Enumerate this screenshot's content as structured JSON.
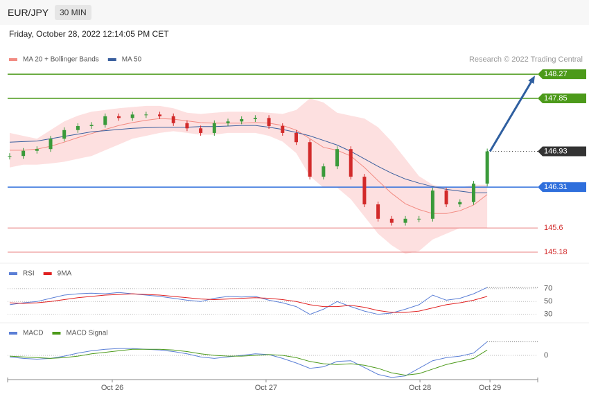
{
  "symbol": "EUR/JPY",
  "timeframe": "30 MIN",
  "datetime": "Friday, October 28, 2022 12:14:05 PM CET",
  "credit": "Research © 2022 Trading Central",
  "chart_data": [
    {
      "type": "candlestick",
      "color_up": "#3a9a3a",
      "color_down": "#d22a2a",
      "values": [
        146.85,
        146.94,
        146.97,
        147.15,
        147.3,
        147.37,
        147.39,
        147.54,
        147.51,
        147.57,
        147.57,
        147.54,
        147.42,
        147.33,
        147.25,
        147.42,
        147.45,
        147.49,
        147.51,
        147.37,
        147.25,
        147.09,
        146.49,
        146.67,
        146.97,
        146.49,
        146.01,
        145.76,
        145.69,
        145.76,
        145.76,
        146.25,
        146.01,
        146.05,
        146.37,
        146.93
      ],
      "series": [
        {
          "name": "MA 20 + Bollinger Bands",
          "color": "#f28b82",
          "band_color": "#fde0e0",
          "values": [
            146.95,
            146.95,
            146.97,
            147.02,
            147.09,
            147.17,
            147.24,
            147.31,
            147.38,
            147.43,
            147.47,
            147.5,
            147.49,
            147.46,
            147.43,
            147.42,
            147.42,
            147.42,
            147.43,
            147.42,
            147.38,
            147.3,
            147.15,
            147.0,
            146.95,
            146.85,
            146.65,
            146.42,
            146.2,
            146.02,
            145.92,
            145.85,
            145.85,
            145.9,
            146.0,
            146.18
          ],
          "upper": [
            147.25,
            147.2,
            147.15,
            147.3,
            147.45,
            147.55,
            147.62,
            147.65,
            147.68,
            147.7,
            147.72,
            147.72,
            147.68,
            147.6,
            147.58,
            147.6,
            147.62,
            147.62,
            147.62,
            147.6,
            147.58,
            147.65,
            147.85,
            147.78,
            147.6,
            147.55,
            147.5,
            147.35,
            147.1,
            146.8,
            146.5,
            146.35,
            146.3,
            146.3,
            146.35,
            146.35
          ],
          "lower": [
            146.65,
            146.7,
            146.7,
            146.72,
            146.75,
            146.8,
            146.85,
            146.95,
            147.05,
            147.15,
            147.2,
            147.25,
            147.28,
            147.25,
            147.22,
            147.22,
            147.25,
            147.25,
            147.25,
            147.2,
            147.1,
            146.9,
            146.5,
            146.3,
            146.3,
            146.1,
            145.8,
            145.5,
            145.3,
            145.15,
            145.2,
            145.4,
            145.5,
            145.6,
            145.6,
            145.6
          ]
        },
        {
          "name": "MA 50",
          "color": "#3a5f9e",
          "values": [
            147.09,
            147.1,
            147.11,
            147.15,
            147.19,
            147.23,
            147.27,
            147.29,
            147.31,
            147.33,
            147.34,
            147.35,
            147.35,
            147.35,
            147.36,
            147.36,
            147.37,
            147.38,
            147.38,
            147.35,
            147.31,
            147.26,
            147.2,
            147.12,
            147.04,
            146.93,
            146.8,
            146.67,
            146.55,
            146.45,
            146.38,
            146.32,
            146.27,
            146.24,
            146.21,
            146.21
          ]
        }
      ],
      "levels": [
        {
          "value": 148.27,
          "color": "#4c9a1a",
          "boxed": true
        },
        {
          "value": 147.85,
          "color": "#4c9a1a",
          "boxed": true
        },
        {
          "value": 146.93,
          "color": "#333333",
          "boxed": true,
          "dotted": true
        },
        {
          "value": 146.31,
          "color": "#2f6fdc",
          "boxed": true
        },
        {
          "value": 145.6,
          "color": "#e88080",
          "boxed": false
        },
        {
          "value": 145.18,
          "color": "#e88080",
          "boxed": false
        }
      ],
      "arrow_color": "#2f5fa0",
      "ylim": [
        145.0,
        148.5
      ],
      "xlim": [
        -0.15,
        38.7
      ]
    },
    {
      "type": "line",
      "series": [
        {
          "name": "RSI",
          "color": "#5b7fd6",
          "values": [
            45,
            48,
            50,
            55,
            60,
            62,
            63,
            62,
            64,
            62,
            60,
            58,
            55,
            52,
            50,
            55,
            58,
            57,
            58,
            52,
            48,
            42,
            30,
            38,
            50,
            42,
            35,
            30,
            32,
            38,
            45,
            60,
            52,
            55,
            62,
            72
          ]
        },
        {
          "name": "9MA",
          "color": "#e02020",
          "values": [
            48,
            47,
            48,
            50,
            53,
            56,
            58,
            60,
            61,
            62,
            61,
            60,
            58,
            56,
            54,
            53,
            54,
            55,
            56,
            55,
            53,
            50,
            45,
            42,
            42,
            44,
            41,
            36,
            33,
            33,
            35,
            40,
            45,
            48,
            52,
            58
          ]
        }
      ],
      "ylim": [
        20,
        100
      ],
      "yticks": [
        30,
        50,
        70
      ],
      "xlim": [
        -0.15,
        38.7
      ]
    },
    {
      "type": "line",
      "series": [
        {
          "name": "MACD",
          "color": "#5b7fd6",
          "values": [
            -0.02,
            -0.04,
            -0.05,
            -0.04,
            -0.01,
            0.03,
            0.06,
            0.08,
            0.09,
            0.09,
            0.08,
            0.07,
            0.05,
            0.02,
            -0.02,
            -0.04,
            -0.02,
            0.0,
            0.02,
            0.01,
            -0.04,
            -0.1,
            -0.17,
            -0.15,
            -0.08,
            -0.07,
            -0.16,
            -0.25,
            -0.29,
            -0.27,
            -0.17,
            -0.07,
            -0.03,
            -0.01,
            0.03,
            0.18
          ]
        },
        {
          "name": "MACD Signal",
          "color": "#4c9a1a",
          "values": [
            -0.01,
            -0.02,
            -0.03,
            -0.04,
            -0.03,
            -0.01,
            0.02,
            0.04,
            0.06,
            0.08,
            0.08,
            0.08,
            0.07,
            0.05,
            0.02,
            0.0,
            -0.01,
            -0.01,
            0.0,
            0.01,
            0.0,
            -0.03,
            -0.08,
            -0.11,
            -0.12,
            -0.11,
            -0.13,
            -0.17,
            -0.23,
            -0.26,
            -0.24,
            -0.18,
            -0.12,
            -0.08,
            -0.04,
            0.07
          ]
        }
      ],
      "ylim": [
        -0.3,
        0.3
      ],
      "yticks": [
        0
      ],
      "xlim": [
        -0.15,
        38.7
      ],
      "xticks": [
        {
          "value": 7.52,
          "label": "Oct 26"
        },
        {
          "value": 18.79,
          "label": "Oct 27"
        },
        {
          "value": 30.07,
          "label": "Oct 28"
        },
        {
          "value": 35.2,
          "label": "Oct 29"
        }
      ]
    }
  ]
}
